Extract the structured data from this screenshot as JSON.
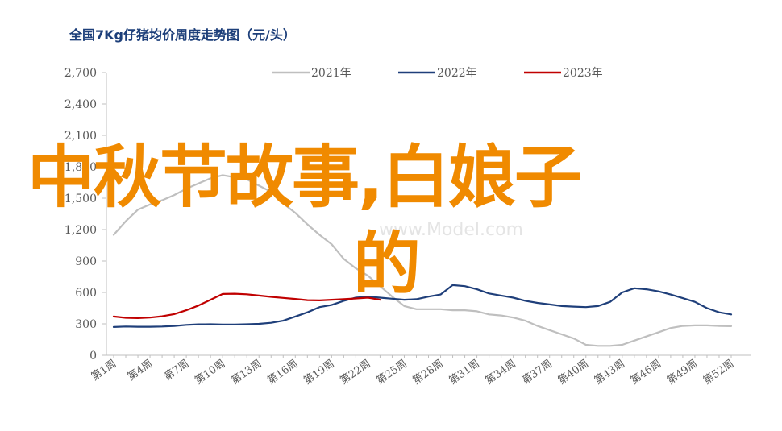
{
  "chart_data": {
    "type": "line",
    "title": "全国7Kg仔猪均价周度走势图（元/头）",
    "xlabel": "",
    "ylabel": "",
    "ylim": [
      0,
      2700
    ],
    "yticks": [
      0,
      300,
      600,
      900,
      1200,
      1500,
      1800,
      2100,
      2400,
      2700
    ],
    "ytick_labels": [
      "0",
      "300",
      "600",
      "900",
      "1,200",
      "1,500",
      "1,800",
      "2,100",
      "2,400",
      "2,700"
    ],
    "x_weeks": [
      1,
      52
    ],
    "xticks": [
      1,
      4,
      7,
      10,
      13,
      16,
      19,
      22,
      25,
      28,
      31,
      34,
      37,
      40,
      43,
      46,
      49,
      52
    ],
    "xtick_labels": [
      "第1周",
      "第4周",
      "第7周",
      "第10周",
      "第13周",
      "第16周",
      "第19周",
      "第22周",
      "第25周",
      "第28周",
      "第31周",
      "第34周",
      "第37周",
      "第40周",
      "第43周",
      "第46周",
      "第49周",
      "第52周"
    ],
    "grid": false,
    "legend_position": "top",
    "series": [
      {
        "name": "2021年",
        "color": "#bfbfbf",
        "points": [
          [
            1,
            1150
          ],
          [
            2,
            1280
          ],
          [
            3,
            1390
          ],
          [
            4,
            1440
          ],
          [
            5,
            1480
          ],
          [
            6,
            1530
          ],
          [
            7,
            1590
          ],
          [
            8,
            1640
          ],
          [
            9,
            1690
          ],
          [
            10,
            1720
          ],
          [
            11,
            1700
          ],
          [
            12,
            1680
          ],
          [
            13,
            1620
          ],
          [
            14,
            1560
          ],
          [
            15,
            1450
          ],
          [
            16,
            1360
          ],
          [
            17,
            1250
          ],
          [
            18,
            1150
          ],
          [
            19,
            1060
          ],
          [
            20,
            920
          ],
          [
            21,
            830
          ],
          [
            22,
            760
          ],
          [
            23,
            660
          ],
          [
            24,
            560
          ],
          [
            25,
            470
          ],
          [
            26,
            440
          ],
          [
            27,
            440
          ],
          [
            28,
            440
          ],
          [
            29,
            430
          ],
          [
            30,
            430
          ],
          [
            31,
            420
          ],
          [
            32,
            390
          ],
          [
            33,
            380
          ],
          [
            34,
            360
          ],
          [
            35,
            330
          ],
          [
            36,
            280
          ],
          [
            37,
            240
          ],
          [
            38,
            200
          ],
          [
            39,
            160
          ],
          [
            40,
            100
          ],
          [
            41,
            90
          ],
          [
            42,
            90
          ],
          [
            43,
            100
          ],
          [
            44,
            140
          ],
          [
            45,
            180
          ],
          [
            46,
            220
          ],
          [
            47,
            260
          ],
          [
            48,
            280
          ],
          [
            49,
            285
          ],
          [
            50,
            285
          ],
          [
            51,
            280
          ],
          [
            52,
            278
          ]
        ]
      },
      {
        "name": "2022年",
        "color": "#1f3f7a",
        "points": [
          [
            1,
            270
          ],
          [
            2,
            275
          ],
          [
            3,
            272
          ],
          [
            4,
            272
          ],
          [
            5,
            275
          ],
          [
            6,
            280
          ],
          [
            7,
            290
          ],
          [
            8,
            295
          ],
          [
            9,
            296
          ],
          [
            10,
            294
          ],
          [
            11,
            294
          ],
          [
            12,
            296
          ],
          [
            13,
            300
          ],
          [
            14,
            310
          ],
          [
            15,
            330
          ],
          [
            16,
            370
          ],
          [
            17,
            410
          ],
          [
            18,
            460
          ],
          [
            19,
            480
          ],
          [
            20,
            520
          ],
          [
            21,
            550
          ],
          [
            22,
            560
          ],
          [
            23,
            550
          ],
          [
            24,
            540
          ],
          [
            25,
            530
          ],
          [
            26,
            535
          ],
          [
            27,
            560
          ],
          [
            28,
            580
          ],
          [
            29,
            670
          ],
          [
            30,
            660
          ],
          [
            31,
            630
          ],
          [
            32,
            590
          ],
          [
            33,
            570
          ],
          [
            34,
            550
          ],
          [
            35,
            520
          ],
          [
            36,
            500
          ],
          [
            37,
            485
          ],
          [
            38,
            470
          ],
          [
            39,
            465
          ],
          [
            40,
            460
          ],
          [
            41,
            470
          ],
          [
            42,
            510
          ],
          [
            43,
            600
          ],
          [
            44,
            640
          ],
          [
            45,
            630
          ],
          [
            46,
            610
          ],
          [
            47,
            580
          ],
          [
            48,
            545
          ],
          [
            49,
            510
          ],
          [
            50,
            450
          ],
          [
            51,
            410
          ],
          [
            52,
            390
          ]
        ]
      },
      {
        "name": "2023年",
        "color": "#c00000",
        "points": [
          [
            1,
            370
          ],
          [
            2,
            358
          ],
          [
            3,
            355
          ],
          [
            4,
            360
          ],
          [
            5,
            372
          ],
          [
            6,
            393
          ],
          [
            7,
            430
          ],
          [
            8,
            475
          ],
          [
            9,
            530
          ],
          [
            10,
            585
          ],
          [
            11,
            588
          ],
          [
            12,
            582
          ],
          [
            13,
            570
          ],
          [
            14,
            558
          ],
          [
            15,
            548
          ],
          [
            16,
            538
          ],
          [
            17,
            526
          ],
          [
            18,
            524
          ],
          [
            19,
            530
          ],
          [
            20,
            535
          ],
          [
            21,
            542
          ],
          [
            22,
            550
          ],
          [
            23,
            530
          ]
        ]
      }
    ]
  },
  "overlay": {
    "line1": "中秋节故事,白娘子",
    "line2": "的"
  },
  "watermark": {
    "text": "www.Model.com"
  }
}
